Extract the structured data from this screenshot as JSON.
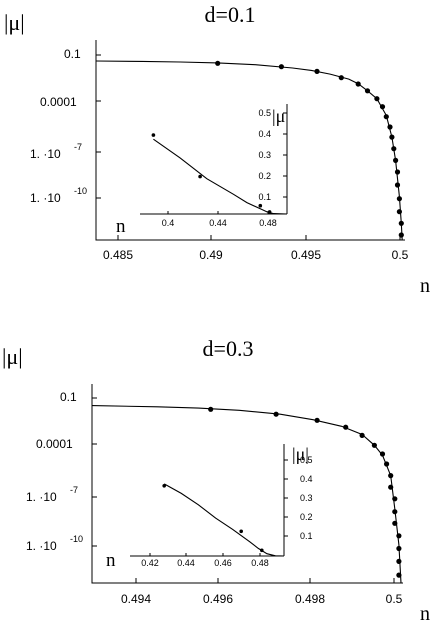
{
  "chart_data": [
    {
      "type": "scatter",
      "title": "d=0.1",
      "xlabel": "n",
      "ylabel": "|μ|",
      "yscale": "log",
      "xlim": [
        0.4835,
        0.5
      ],
      "ylim": [
        1e-12,
        1
      ],
      "x_ticks": [
        "0.485",
        "0.49",
        "0.495",
        "0.5"
      ],
      "y_ticks": [
        "0.1",
        "0.0001",
        "1. ·10",
        "1. ·10"
      ],
      "y_tick_exponents": [
        "",
        "",
        "-7",
        "-10"
      ],
      "points": [
        [
          0.49,
          0.04
        ],
        [
          0.4934,
          0.025
        ],
        [
          0.4953,
          0.013
        ],
        [
          0.4966,
          0.0055
        ],
        [
          0.4975,
          0.0023
        ],
        [
          0.498,
          0.0009
        ],
        [
          0.4985,
          0.0003
        ],
        [
          0.4988,
          0.0001
        ],
        [
          0.499,
          2.5e-05
        ],
        [
          0.4992,
          6e-06
        ],
        [
          0.4993,
          1.5e-06
        ],
        [
          0.4994,
          3e-07
        ],
        [
          0.4995,
          6e-08
        ],
        [
          0.4996,
          1.2e-08
        ],
        [
          0.4996,
          2e-09
        ],
        [
          0.4997,
          3e-10
        ],
        [
          0.4997,
          5e-11
        ],
        [
          0.4998,
          1e-11
        ],
        [
          0.4998,
          2e-12
        ]
      ],
      "curve": [
        [
          0.4835,
          0.055
        ],
        [
          0.486,
          0.052
        ],
        [
          0.488,
          0.048
        ],
        [
          0.49,
          0.042
        ],
        [
          0.492,
          0.033
        ],
        [
          0.494,
          0.021
        ],
        [
          0.495,
          0.015
        ],
        [
          0.496,
          0.009
        ],
        [
          0.497,
          0.0045
        ],
        [
          0.4975,
          0.0024
        ],
        [
          0.498,
          0.0009
        ],
        [
          0.4985,
          0.0003
        ],
        [
          0.499,
          3e-05
        ],
        [
          0.4993,
          1.5e-06
        ],
        [
          0.4995,
          6e-08
        ],
        [
          0.4997,
          4e-10
        ],
        [
          0.4998,
          1e-11
        ],
        [
          0.49985,
          1e-12
        ]
      ],
      "inset": {
        "xlabel": "n",
        "ylabel": "|μ|",
        "xlim": [
          0.39,
          0.5
        ],
        "ylim": [
          0,
          0.52
        ],
        "x_ticks": [
          "0.4",
          "0.44",
          "0.48"
        ],
        "y_ticks": [
          "0.1",
          "0.2",
          "0.3",
          "0.4",
          "0.5"
        ],
        "points": [
          [
            0.4,
            0.38
          ],
          [
            0.435,
            0.18
          ],
          [
            0.48,
            0.04
          ],
          [
            0.487,
            0.01
          ]
        ],
        "curve": [
          [
            0.4,
            0.36
          ],
          [
            0.42,
            0.27
          ],
          [
            0.44,
            0.17
          ],
          [
            0.46,
            0.095
          ],
          [
            0.47,
            0.055
          ],
          [
            0.48,
            0.025
          ],
          [
            0.485,
            0.01
          ],
          [
            0.49,
            0.002
          ],
          [
            0.5,
            0.0
          ]
        ]
      }
    },
    {
      "type": "scatter",
      "title": "d=0.3",
      "xlabel": "n",
      "ylabel": "|μ|",
      "yscale": "log",
      "xlim": [
        0.4924,
        0.5
      ],
      "ylim": [
        1e-12,
        1
      ],
      "x_ticks": [
        "0.494",
        "0.496",
        "0.498",
        "0.5"
      ],
      "y_ticks": [
        "0.1",
        "0.0001",
        "1. ·10",
        "1. ·10"
      ],
      "y_tick_exponents": [
        "",
        "",
        "-7",
        "-10"
      ],
      "points": [
        [
          0.4953,
          0.03
        ],
        [
          0.4969,
          0.015
        ],
        [
          0.4979,
          0.0065
        ],
        [
          0.4986,
          0.0025
        ],
        [
          0.499,
          0.0008
        ],
        [
          0.4993,
          0.0002
        ],
        [
          0.4995,
          6e-05
        ],
        [
          0.4996,
          1.5e-05
        ],
        [
          0.4997,
          3e-06
        ],
        [
          0.4997,
          6e-07
        ],
        [
          0.4998,
          1.2e-07
        ],
        [
          0.4998,
          2e-08
        ],
        [
          0.4998,
          4e-09
        ],
        [
          0.4999,
          7e-10
        ],
        [
          0.4999,
          1.2e-10
        ],
        [
          0.4999,
          2e-11
        ],
        [
          0.4999,
          3e-12
        ]
      ],
      "curve": [
        [
          0.4924,
          0.05
        ],
        [
          0.494,
          0.042
        ],
        [
          0.495,
          0.035
        ],
        [
          0.496,
          0.026
        ],
        [
          0.497,
          0.015
        ],
        [
          0.4978,
          0.007
        ],
        [
          0.4985,
          0.0028
        ],
        [
          0.499,
          0.0009
        ],
        [
          0.4993,
          0.0002
        ],
        [
          0.4995,
          5e-05
        ],
        [
          0.4997,
          3e-06
        ],
        [
          0.4998,
          3e-08
        ],
        [
          0.4999,
          2e-10
        ],
        [
          0.49995,
          1e-12
        ]
      ],
      "inset": {
        "xlabel": "n",
        "ylabel": "|μ|",
        "xlim": [
          0.41,
          0.5
        ],
        "ylim": [
          0,
          0.58
        ],
        "x_ticks": [
          "0.42",
          "0.44",
          "0.46",
          "0.48"
        ],
        "y_ticks": [
          "0.1",
          "0.2",
          "0.3",
          "0.4",
          "0.5"
        ],
        "points": [
          [
            0.43,
            0.37
          ],
          [
            0.475,
            0.13
          ],
          [
            0.487,
            0.03
          ]
        ],
        "curve": [
          [
            0.43,
            0.38
          ],
          [
            0.44,
            0.33
          ],
          [
            0.45,
            0.27
          ],
          [
            0.46,
            0.2
          ],
          [
            0.47,
            0.14
          ],
          [
            0.48,
            0.075
          ],
          [
            0.485,
            0.04
          ],
          [
            0.49,
            0.012
          ],
          [
            0.495,
            0.001
          ],
          [
            0.5,
            0.0
          ]
        ]
      }
    }
  ]
}
